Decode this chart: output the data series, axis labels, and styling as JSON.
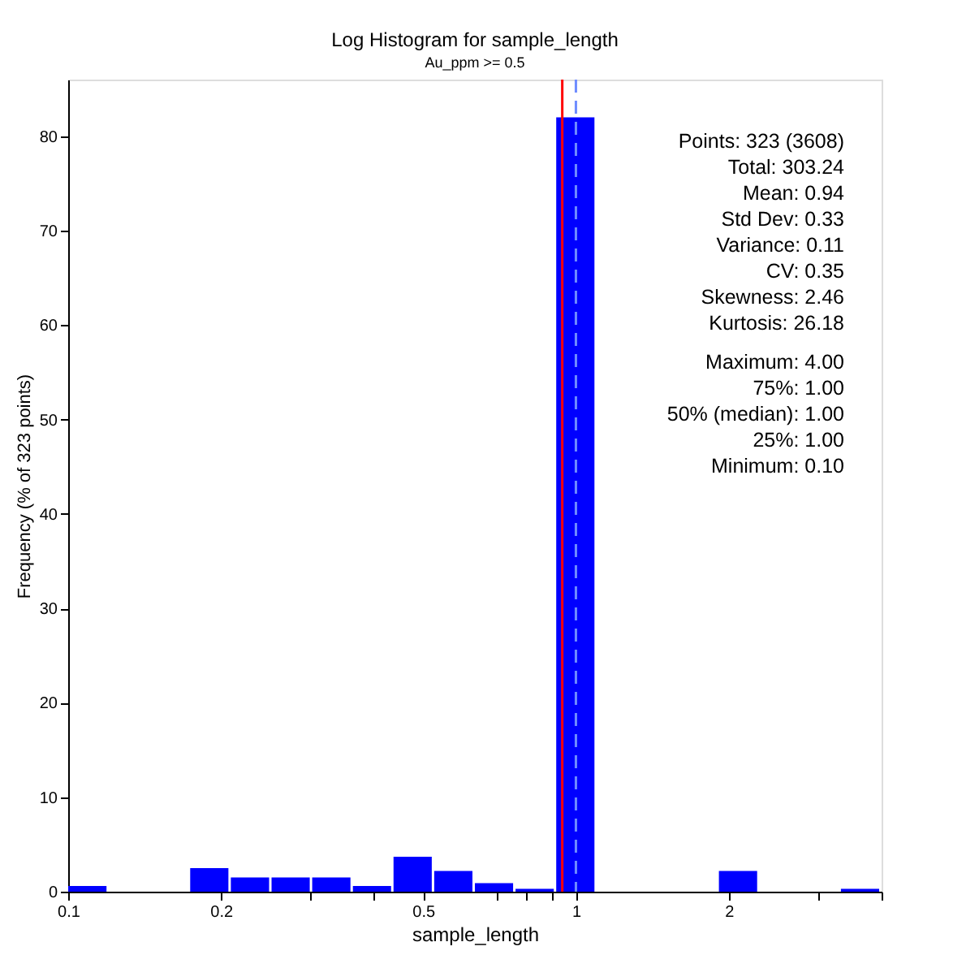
{
  "chart_data": {
    "type": "histogram",
    "title": "Log Histogram for sample_length",
    "subtitle": "Au_ppm >= 0.5",
    "xlabel": "sample_length",
    "ylabel": "Frequency (% of 323 points)",
    "bins": [
      0.1,
      0.1203,
      0.1446,
      0.1739,
      0.2091,
      0.2515,
      0.3024,
      0.3637,
      0.4373,
      0.5259,
      0.6324,
      0.7605,
      0.9146,
      1.0998,
      1.3226,
      1.5905,
      1.9127,
      2.3001,
      2.766,
      3.3262,
      4.0
    ],
    "values": [
      0.6,
      0,
      0,
      2.5,
      1.5,
      1.5,
      1.5,
      0.6,
      3.7,
      2.2,
      0.9,
      0.3,
      82,
      0,
      0,
      0,
      2.2,
      0,
      0,
      0.3
    ],
    "color": "#0000ff",
    "log": "x",
    "xlim": [
      0.1,
      4
    ],
    "xticks": [
      0.1,
      0.2,
      {
        "value": 0.3,
        "label": null
      },
      {
        "value": 0.4,
        "label": null
      },
      0.5,
      {
        "value": 0.7,
        "label": null
      },
      {
        "value": 0.8,
        "label": null
      },
      {
        "value": 0.9,
        "label": null
      },
      1,
      2,
      {
        "value": 3,
        "label": null
      },
      {
        "value": 4,
        "label": null
      }
    ],
    "ylim": [
      0,
      86
    ],
    "yticks": [
      0,
      10,
      20,
      30,
      40,
      50,
      60,
      70,
      80
    ],
    "ref_lines": [
      {
        "axis": "x",
        "value": 0.94,
        "color": "#ff0000",
        "line_style": "solid"
      },
      {
        "axis": "x",
        "value": 1,
        "color": "#6f8cff",
        "line_style": "dashed"
      }
    ],
    "annotations": [
      "Points: 323 (3608)",
      "Total: 303.24",
      "Mean: 0.94",
      "Std Dev: 0.33",
      "Variance: 0.11",
      "CV: 0.35",
      "Skewness: 2.46",
      "Kurtosis: 26.18",
      "Maximum: 4.00",
      "75%: 1.00",
      "50% (median): 1.00",
      "25%: 1.00",
      "Minimum: 0.10"
    ],
    "grid": false
  }
}
